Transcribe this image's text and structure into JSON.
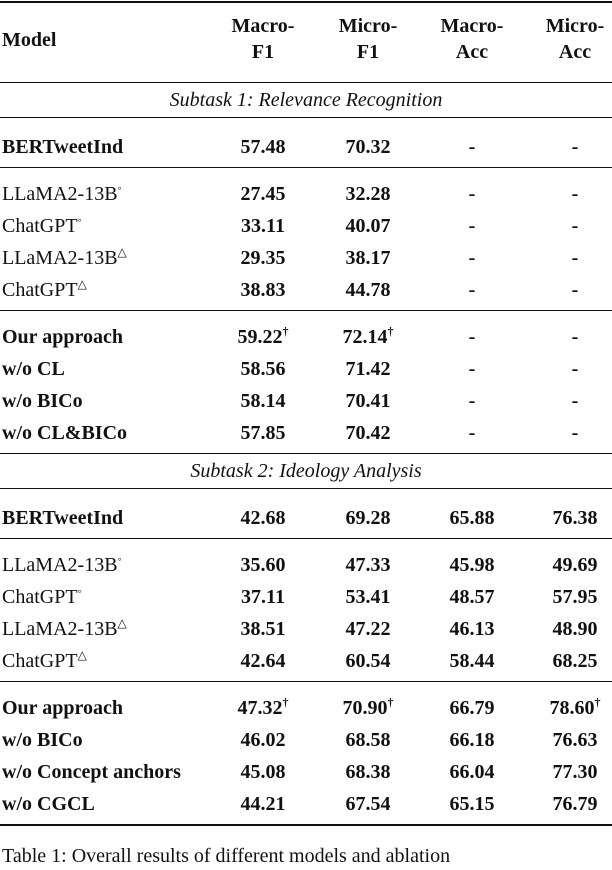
{
  "table": {
    "header": [
      [
        "Model"
      ],
      [
        "Macro-",
        "F1"
      ],
      [
        "Micro-",
        "F1"
      ],
      [
        "Macro-",
        "Acc"
      ],
      [
        "Micro-",
        "Acc"
      ]
    ],
    "sections": [
      {
        "title": "Subtask 1: Relevance Recognition",
        "groups": [
          [
            [
              "BERTweetInd",
              "57.48",
              "70.32",
              "-",
              "-"
            ]
          ],
          [
            [
              {
                "text": "LLaMA2-13B",
                "sup": "◦"
              },
              "27.45",
              "32.28",
              "-",
              "-"
            ],
            [
              {
                "text": "ChatGPT",
                "sup": "◦"
              },
              "33.11",
              "40.07",
              "-",
              "-"
            ],
            [
              {
                "text": "LLaMA2-13B",
                "sup": "△"
              },
              "29.35",
              "38.17",
              "-",
              "-"
            ],
            [
              {
                "text": "ChatGPT",
                "sup": "△"
              },
              "38.83",
              "44.78",
              "-",
              "-"
            ]
          ],
          [
            [
              {
                "text": "Our approach",
                "bold": true
              },
              {
                "text": "59.22",
                "sup": "†",
                "bold": true
              },
              {
                "text": "72.14",
                "sup": "†",
                "bold": true
              },
              "-",
              "-"
            ],
            [
              "w/o CL",
              "58.56",
              "71.42",
              "-",
              "-"
            ],
            [
              "w/o BICo",
              "58.14",
              "70.41",
              "-",
              "-"
            ],
            [
              "w/o CL&BICo",
              "57.85",
              "70.42",
              "-",
              "-"
            ]
          ]
        ]
      },
      {
        "title": "Subtask 2: Ideology Analysis",
        "groups": [
          [
            [
              "BERTweetInd",
              "42.68",
              "69.28",
              "65.88",
              "76.38"
            ]
          ],
          [
            [
              {
                "text": "LLaMA2-13B",
                "sup": "◦"
              },
              "35.60",
              "47.33",
              "45.98",
              "49.69"
            ],
            [
              {
                "text": "ChatGPT",
                "sup": "◦"
              },
              "37.11",
              "53.41",
              "48.57",
              "57.95"
            ],
            [
              {
                "text": "LLaMA2-13B",
                "sup": "△"
              },
              "38.51",
              "47.22",
              "46.13",
              "48.90"
            ],
            [
              {
                "text": "ChatGPT",
                "sup": "△"
              },
              "42.64",
              "60.54",
              "58.44",
              "68.25"
            ]
          ],
          [
            [
              {
                "text": "Our approach",
                "bold": true
              },
              {
                "text": "47.32",
                "sup": "†",
                "bold": true
              },
              {
                "text": "70.90",
                "sup": "†",
                "bold": true
              },
              {
                "text": "66.79",
                "bold": true
              },
              {
                "text": "78.60",
                "sup": "†",
                "bold": true
              }
            ],
            [
              "w/o BICo",
              "46.02",
              "68.58",
              "66.18",
              "76.63"
            ],
            [
              "w/o Concept anchors",
              "45.08",
              "68.38",
              "66.04",
              "77.30"
            ],
            [
              "w/o CGCL",
              "44.21",
              "67.54",
              "65.15",
              "76.79"
            ]
          ]
        ]
      }
    ],
    "caption": "Table 1: Overall results of different models and ablation"
  }
}
